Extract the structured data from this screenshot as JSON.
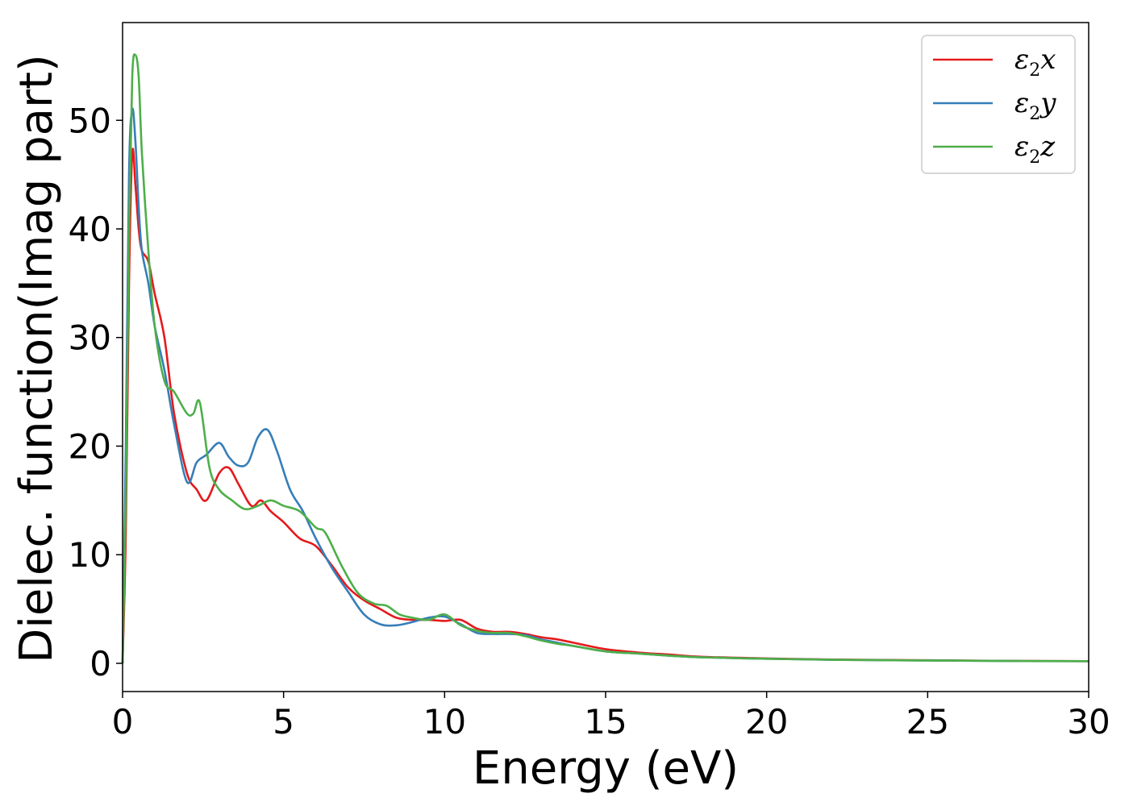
{
  "chart_data": {
    "type": "line",
    "title": "",
    "xlabel": "Energy (eV)",
    "ylabel": "Dielec. function(Imag part)",
    "xlim": [
      0,
      30
    ],
    "ylim": [
      -2.6,
      59
    ],
    "xticks": [
      0,
      5,
      10,
      15,
      20,
      25,
      30
    ],
    "yticks": [
      0,
      10,
      20,
      30,
      40,
      50
    ],
    "xtick_labels": [
      "0",
      "5",
      "10",
      "15",
      "20",
      "25",
      "30"
    ],
    "ytick_labels": [
      "0",
      "10",
      "20",
      "30",
      "40",
      "50"
    ],
    "grid": false,
    "legend_position": "top-right",
    "series": [
      {
        "name": "ε2x",
        "legend_base": "ε",
        "legend_sub": "2",
        "legend_var": "x",
        "color": "#e41a1c",
        "x": [
          0,
          0.1,
          0.2,
          0.3,
          0.4,
          0.5,
          0.6,
          0.8,
          1.0,
          1.3,
          1.6,
          2.0,
          2.3,
          2.6,
          3.0,
          3.3,
          3.6,
          4.0,
          4.3,
          4.6,
          5.0,
          5.5,
          6.0,
          6.5,
          7.0,
          7.5,
          8.0,
          8.5,
          9.0,
          9.5,
          10.0,
          10.5,
          11.0,
          11.5,
          12.0,
          12.5,
          13.0,
          13.5,
          14.0,
          15.0,
          16.0,
          17.0,
          18.0,
          20.0,
          22.0,
          25.0,
          28.0,
          30.0
        ],
        "y": [
          0,
          12,
          35,
          47,
          44,
          40,
          38,
          37,
          34,
          30,
          23,
          17.5,
          16,
          15,
          17.5,
          18,
          16.5,
          14.5,
          15,
          14,
          13,
          11.5,
          10.8,
          9,
          7,
          5.8,
          5,
          4.2,
          4,
          4,
          3.9,
          4,
          3.2,
          2.9,
          2.9,
          2.7,
          2.4,
          2.2,
          1.9,
          1.3,
          1.0,
          0.8,
          0.6,
          0.45,
          0.35,
          0.28,
          0.22,
          0.2
        ]
      },
      {
        "name": "ε2y",
        "legend_base": "ε",
        "legend_sub": "2",
        "legend_var": "y",
        "color": "#377eb8",
        "x": [
          0,
          0.1,
          0.2,
          0.3,
          0.4,
          0.5,
          0.6,
          0.8,
          1.0,
          1.3,
          1.6,
          2.0,
          2.3,
          2.6,
          3.0,
          3.3,
          3.6,
          3.9,
          4.2,
          4.5,
          4.8,
          5.2,
          5.6,
          6.0,
          6.5,
          7.0,
          7.5,
          8.0,
          8.5,
          9.0,
          9.5,
          10.0,
          10.5,
          11.0,
          11.5,
          12.0,
          12.5,
          13.0,
          13.5,
          14.0,
          15.0,
          16.0,
          17.0,
          18.0,
          20.0,
          22.0,
          25.0,
          28.0,
          30.0
        ],
        "y": [
          0,
          20,
          45,
          51,
          48,
          42,
          38,
          35,
          31,
          27,
          22,
          16.7,
          18.5,
          19.2,
          20.3,
          19,
          18.2,
          18.5,
          20.8,
          21.5,
          19.5,
          16,
          14,
          11.5,
          8.8,
          6.6,
          4.5,
          3.6,
          3.5,
          3.8,
          4.2,
          4.3,
          3.6,
          2.8,
          2.7,
          2.7,
          2.6,
          2.2,
          1.9,
          1.6,
          1.1,
          0.9,
          0.7,
          0.55,
          0.42,
          0.33,
          0.26,
          0.21,
          0.2
        ]
      },
      {
        "name": "ε2z",
        "legend_base": "ε",
        "legend_sub": "2",
        "legend_var": "z",
        "color": "#4daf4a",
        "x": [
          0,
          0.1,
          0.2,
          0.3,
          0.4,
          0.5,
          0.6,
          0.8,
          1.0,
          1.3,
          1.6,
          2.0,
          2.2,
          2.4,
          2.7,
          3.0,
          3.4,
          3.8,
          4.2,
          4.6,
          5.0,
          5.5,
          6.0,
          6.3,
          6.8,
          7.3,
          7.8,
          8.2,
          8.6,
          9.0,
          9.5,
          10.0,
          10.5,
          11.0,
          11.5,
          12.0,
          12.5,
          13.0,
          13.5,
          14.0,
          15.0,
          16.0,
          17.0,
          18.0,
          20.0,
          22.0,
          25.0,
          28.0,
          30.0
        ],
        "y": [
          0,
          15,
          40,
          54,
          56,
          54,
          47,
          38,
          31,
          26,
          25,
          23,
          23,
          24,
          18,
          16,
          15,
          14.2,
          14.5,
          15,
          14.5,
          14,
          12.5,
          12,
          9,
          6.5,
          5.5,
          5.3,
          4.5,
          4.2,
          4,
          4.5,
          3.5,
          3,
          2.8,
          2.8,
          2.5,
          2.1,
          1.8,
          1.6,
          1.1,
          0.9,
          0.7,
          0.55,
          0.42,
          0.33,
          0.26,
          0.21,
          0.2
        ]
      }
    ]
  }
}
